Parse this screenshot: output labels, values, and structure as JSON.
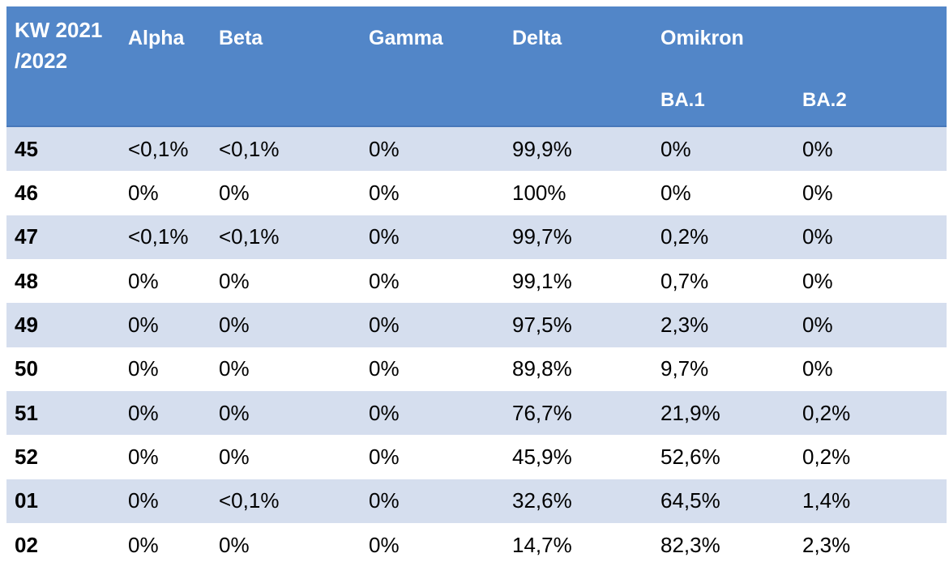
{
  "table": {
    "header": {
      "week_label_line1": "KW 2021",
      "week_label_line2": "/2022",
      "columns": [
        "Alpha",
        "Beta",
        "Gamma",
        "Delta",
        "Omikron"
      ],
      "subcolumns": [
        "BA.1",
        "BA.2"
      ]
    },
    "rows": [
      {
        "week": "45",
        "values": [
          "<0,1%",
          "<0,1%",
          "0%",
          "99,9%",
          "0%",
          "0%"
        ]
      },
      {
        "week": "46",
        "values": [
          "0%",
          "0%",
          "0%",
          "100%",
          "0%",
          "0%"
        ]
      },
      {
        "week": "47",
        "values": [
          "<0,1%",
          "<0,1%",
          "0%",
          "99,7%",
          "0,2%",
          "0%"
        ]
      },
      {
        "week": "48",
        "values": [
          "0%",
          "0%",
          "0%",
          "99,1%",
          "0,7%",
          "0%"
        ]
      },
      {
        "week": "49",
        "values": [
          "0%",
          "0%",
          "0%",
          "97,5%",
          "2,3%",
          "0%"
        ]
      },
      {
        "week": "50",
        "values": [
          "0%",
          "0%",
          "0%",
          "89,8%",
          "9,7%",
          "0%"
        ]
      },
      {
        "week": "51",
        "values": [
          "0%",
          "0%",
          "0%",
          "76,7%",
          "21,9%",
          "0,2%"
        ]
      },
      {
        "week": "52",
        "values": [
          "0%",
          "0%",
          "0%",
          "45,9%",
          "52,6%",
          "0,2%"
        ]
      },
      {
        "week": "01",
        "values": [
          "0%",
          "<0,1%",
          "0%",
          "32,6%",
          "64,5%",
          "1,4%"
        ]
      },
      {
        "week": "02",
        "values": [
          "0%",
          "0%",
          "0%",
          "14,7%",
          "82,3%",
          "2,3%"
        ]
      }
    ]
  },
  "colors": {
    "header_bg": "#5286C8",
    "header_border": "#4878BA",
    "header_text": "#FFFFFF",
    "band_bg": "#D5DEEE",
    "body_text": "#000000"
  }
}
